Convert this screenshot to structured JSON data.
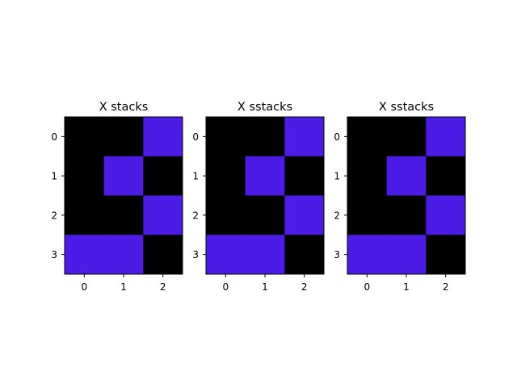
{
  "colors": {
    "background": "#ffffff",
    "cell_off": "#000000",
    "cell_on": "#4c1be6",
    "axes_edge": "#000000"
  },
  "chart_data": [
    {
      "type": "heatmap",
      "title": "X stacks",
      "x_ticks": [
        "0",
        "1",
        "2"
      ],
      "y_ticks": [
        "0",
        "1",
        "2",
        "3"
      ],
      "grid": false,
      "values": [
        [
          0,
          0,
          1
        ],
        [
          0,
          1,
          0
        ],
        [
          0,
          0,
          1
        ],
        [
          1,
          1,
          0
        ]
      ]
    },
    {
      "type": "heatmap",
      "title": "X sstacks",
      "x_ticks": [
        "0",
        "1",
        "2"
      ],
      "y_ticks": [
        "0",
        "1",
        "2",
        "3"
      ],
      "grid": false,
      "values": [
        [
          0,
          0,
          1
        ],
        [
          0,
          1,
          0
        ],
        [
          0,
          0,
          1
        ],
        [
          1,
          1,
          0
        ]
      ]
    },
    {
      "type": "heatmap",
      "title": "X sstacks",
      "x_ticks": [
        "0",
        "1",
        "2"
      ],
      "y_ticks": [
        "0",
        "1",
        "2",
        "3"
      ],
      "grid": false,
      "values": [
        [
          0,
          0,
          1
        ],
        [
          0,
          1,
          0
        ],
        [
          0,
          0,
          1
        ],
        [
          1,
          1,
          0
        ]
      ]
    }
  ]
}
